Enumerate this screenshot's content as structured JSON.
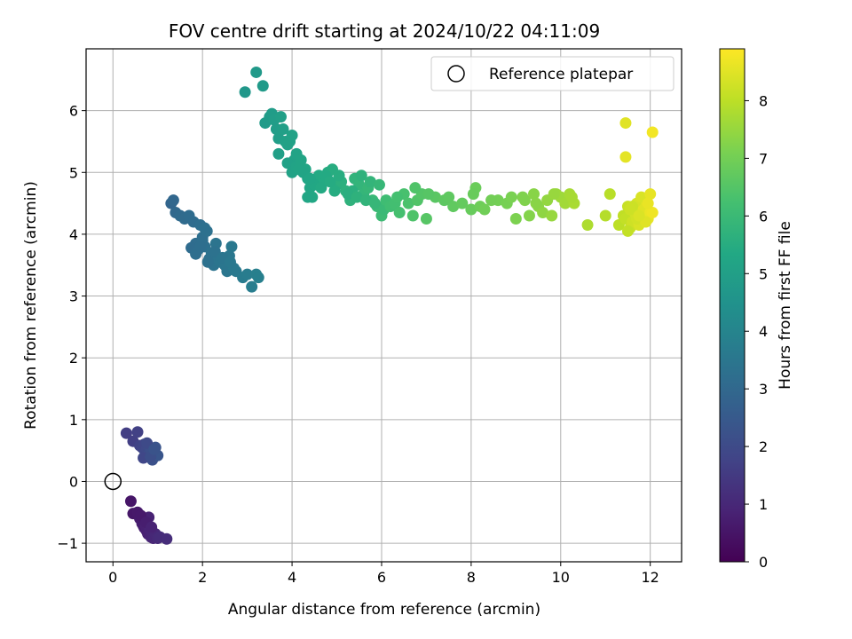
{
  "chart_data": {
    "type": "scatter",
    "title": "FOV centre drift starting at 2024/10/22 04:11:09",
    "xlabel": "Angular distance from reference (arcmin)",
    "ylabel": "Rotation from reference (arcmin)",
    "xlim": [
      -0.6,
      12.7
    ],
    "ylim": [
      -1.3,
      7.0
    ],
    "xticks": [
      0,
      2,
      4,
      6,
      8,
      10,
      12
    ],
    "yticks": [
      -1,
      0,
      1,
      2,
      3,
      4,
      5,
      6
    ],
    "xtick_labels": [
      "0",
      "2",
      "4",
      "6",
      "8",
      "10",
      "12"
    ],
    "ytick_labels": [
      "−1",
      "0",
      "1",
      "2",
      "3",
      "4",
      "5",
      "6"
    ],
    "grid": true,
    "legend": {
      "position": "top-right",
      "label": "Reference platepar"
    },
    "reference_point": {
      "x": 0,
      "y": 0
    },
    "colorbar": {
      "label": "Hours from first FF file",
      "range": [
        0,
        8.9
      ],
      "ticks": [
        0,
        1,
        2,
        3,
        4,
        5,
        6,
        7,
        8
      ],
      "tick_labels": [
        "0",
        "1",
        "2",
        "3",
        "4",
        "5",
        "6",
        "7",
        "8"
      ],
      "colormap": "viridis"
    },
    "series": [
      {
        "x": [
          0.4,
          0.45,
          0.55,
          0.6,
          0.65,
          0.68,
          0.7,
          0.72,
          0.75,
          0.78,
          0.8,
          0.82,
          0.85,
          0.88,
          0.9,
          0.92,
          0.95,
          1.0,
          1.05,
          1.2,
          0.62,
          0.74,
          0.86
        ],
        "y": [
          -0.32,
          -0.52,
          -0.5,
          -0.6,
          -0.68,
          -0.72,
          -0.75,
          -0.7,
          -0.8,
          -0.85,
          -0.58,
          -0.78,
          -0.9,
          -0.82,
          -0.92,
          -0.88,
          -0.85,
          -0.92,
          -0.9,
          -0.93,
          -0.55,
          -0.66,
          -0.74
        ],
        "h": [
          0.5,
          0.55,
          0.6,
          0.65,
          0.7,
          0.72,
          0.75,
          0.78,
          0.8,
          0.82,
          0.85,
          0.88,
          0.9,
          0.92,
          0.95,
          0.97,
          1.0,
          1.05,
          1.1,
          1.15,
          0.62,
          0.74,
          0.86
        ]
      },
      {
        "x": [
          0.3,
          0.45,
          0.55,
          0.6,
          0.65,
          0.7,
          0.72,
          0.75,
          0.78,
          0.8,
          0.82,
          0.85,
          0.88,
          0.9,
          0.95,
          1.0,
          0.68,
          0.76,
          0.84,
          0.92
        ],
        "y": [
          0.78,
          0.65,
          0.8,
          0.58,
          0.55,
          0.6,
          0.48,
          0.52,
          0.4,
          0.45,
          0.55,
          0.5,
          0.35,
          0.45,
          0.55,
          0.42,
          0.38,
          0.62,
          0.4,
          0.52
        ],
        "h": [
          1.6,
          1.65,
          1.7,
          1.75,
          1.8,
          1.85,
          1.9,
          1.95,
          2.0,
          2.05,
          2.1,
          2.15,
          2.2,
          2.25,
          2.3,
          2.35,
          1.88,
          1.98,
          2.12,
          2.28
        ]
      },
      {
        "x": [
          1.3,
          1.35,
          1.4,
          1.5,
          1.6,
          1.7,
          1.8,
          1.85,
          1.9,
          1.95,
          2.0,
          2.05,
          2.1,
          2.15,
          2.2,
          2.25,
          2.3,
          2.35,
          2.4,
          2.5,
          2.55,
          2.6,
          2.65,
          2.7,
          2.75,
          2.9,
          3.0,
          3.1,
          3.2,
          3.25,
          1.75,
          1.85,
          2.0,
          2.12,
          2.28,
          2.45,
          2.62,
          1.95,
          2.05
        ],
        "y": [
          4.5,
          4.55,
          4.35,
          4.3,
          4.25,
          4.3,
          4.2,
          3.85,
          3.75,
          4.15,
          3.95,
          3.8,
          4.05,
          3.6,
          3.7,
          3.5,
          3.85,
          3.6,
          3.55,
          3.5,
          3.4,
          3.65,
          3.8,
          3.45,
          3.4,
          3.3,
          3.35,
          3.15,
          3.35,
          3.3,
          3.78,
          3.68,
          3.9,
          3.55,
          3.72,
          3.62,
          3.55,
          3.8,
          4.1
        ],
        "h": [
          2.9,
          2.95,
          3.0,
          3.05,
          3.1,
          3.12,
          3.15,
          3.18,
          3.2,
          3.22,
          3.25,
          3.28,
          3.3,
          3.32,
          3.35,
          3.38,
          3.4,
          3.42,
          3.45,
          3.48,
          3.5,
          3.52,
          3.55,
          3.58,
          3.6,
          3.65,
          3.7,
          3.75,
          3.8,
          3.82,
          3.15,
          3.2,
          3.25,
          3.3,
          3.35,
          3.45,
          3.55,
          3.22,
          3.28
        ]
      },
      {
        "x": [
          2.95,
          3.2,
          3.35,
          3.4,
          3.5,
          3.55,
          3.6,
          3.65,
          3.7,
          3.75,
          3.8,
          3.85,
          3.9,
          3.95,
          4.0,
          4.05,
          4.1,
          3.7,
          3.9,
          4.0,
          4.1,
          4.2,
          4.3,
          4.35,
          4.4,
          4.45,
          4.5,
          4.55,
          4.6,
          4.7,
          4.8,
          4.9,
          5.0,
          5.1,
          5.2,
          5.3,
          5.4,
          5.5,
          5.6,
          5.7,
          5.8,
          5.9,
          6.0,
          4.25,
          4.5,
          4.75,
          5.05,
          5.35,
          5.55,
          5.75,
          5.95,
          4.15,
          4.4,
          4.65,
          4.95,
          5.25,
          5.45,
          5.65,
          5.85,
          6.05,
          4.35,
          4.85
        ],
        "y": [
          6.3,
          6.62,
          6.4,
          5.8,
          5.9,
          5.95,
          5.85,
          5.7,
          5.55,
          5.9,
          5.7,
          5.5,
          5.45,
          5.5,
          5.6,
          5.2,
          5.3,
          5.3,
          5.15,
          5.0,
          5.1,
          5.2,
          5.05,
          4.9,
          4.75,
          4.6,
          4.8,
          4.9,
          4.95,
          4.85,
          5.0,
          5.05,
          4.8,
          4.85,
          4.7,
          4.55,
          4.9,
          4.8,
          4.65,
          4.75,
          4.55,
          4.45,
          4.3,
          5.0,
          4.8,
          4.95,
          4.95,
          4.7,
          4.95,
          4.85,
          4.8,
          5.05,
          4.9,
          4.75,
          4.7,
          4.65,
          4.6,
          4.55,
          4.5,
          4.4,
          4.6,
          4.85
        ],
        "h": [
          4.7,
          4.75,
          4.8,
          4.82,
          4.85,
          4.88,
          4.9,
          4.92,
          4.95,
          4.98,
          5.0,
          5.02,
          5.05,
          5.08,
          5.1,
          5.12,
          5.15,
          5.0,
          5.05,
          5.1,
          5.15,
          5.2,
          5.22,
          5.25,
          5.28,
          5.3,
          5.32,
          5.35,
          5.38,
          5.4,
          5.45,
          5.5,
          5.55,
          5.6,
          5.65,
          5.7,
          5.75,
          5.8,
          5.85,
          5.9,
          5.95,
          6.0,
          6.05,
          5.2,
          5.3,
          5.4,
          5.5,
          5.6,
          5.7,
          5.8,
          5.9,
          5.18,
          5.28,
          5.38,
          5.48,
          5.58,
          5.68,
          5.78,
          5.88,
          5.98,
          5.25,
          5.45
        ]
      },
      {
        "x": [
          6.1,
          6.2,
          6.3,
          6.4,
          6.5,
          6.6,
          6.7,
          6.8,
          6.9,
          7.0,
          7.2,
          7.4,
          7.6,
          7.8,
          8.0,
          8.1,
          8.2,
          8.3,
          8.6,
          8.8,
          8.9,
          9.0,
          9.2,
          9.3,
          9.4,
          9.5,
          9.6,
          9.7,
          9.8,
          9.9,
          10.0,
          10.1,
          10.2,
          10.3,
          10.6,
          11.0,
          11.1,
          6.35,
          6.75,
          7.05,
          7.5,
          8.05,
          8.45,
          9.15,
          9.45,
          9.85,
          10.25
        ],
        "y": [
          4.55,
          4.45,
          4.5,
          4.35,
          4.65,
          4.5,
          4.3,
          4.55,
          4.65,
          4.25,
          4.6,
          4.55,
          4.45,
          4.5,
          4.4,
          4.75,
          4.45,
          4.4,
          4.55,
          4.5,
          4.6,
          4.25,
          4.55,
          4.3,
          4.65,
          4.45,
          4.35,
          4.55,
          4.3,
          4.65,
          4.6,
          4.5,
          4.65,
          4.5,
          4.15,
          4.3,
          4.65,
          4.6,
          4.75,
          4.65,
          4.6,
          4.65,
          4.55,
          4.6,
          4.5,
          4.65,
          4.6
        ],
        "h": [
          6.1,
          6.15,
          6.2,
          6.25,
          6.3,
          6.35,
          6.4,
          6.45,
          6.5,
          6.55,
          6.6,
          6.65,
          6.7,
          6.75,
          6.8,
          6.85,
          6.9,
          6.95,
          7.0,
          7.05,
          7.1,
          7.15,
          7.2,
          7.25,
          7.3,
          7.35,
          7.4,
          7.45,
          7.5,
          7.55,
          7.6,
          7.65,
          7.7,
          7.75,
          7.8,
          7.9,
          7.95,
          6.22,
          6.42,
          6.55,
          6.68,
          6.82,
          6.98,
          7.18,
          7.32,
          7.52,
          7.72
        ]
      },
      {
        "x": [
          11.3,
          11.4,
          11.45,
          11.5,
          11.55,
          11.6,
          11.65,
          11.7,
          11.75,
          11.8,
          11.85,
          11.9,
          11.95,
          12.0,
          12.05,
          11.45,
          11.45,
          12.05,
          11.5,
          11.6,
          11.7,
          11.8,
          11.9,
          12.0,
          11.55,
          11.75,
          11.95
        ],
        "y": [
          4.15,
          4.3,
          4.25,
          4.45,
          4.1,
          4.2,
          4.35,
          4.5,
          4.15,
          4.3,
          4.4,
          4.55,
          4.25,
          4.35,
          4.35,
          5.8,
          5.25,
          5.65,
          4.05,
          4.45,
          4.25,
          4.6,
          4.2,
          4.65,
          4.4,
          4.3,
          4.5
        ],
        "h": [
          8.0,
          8.05,
          8.1,
          8.15,
          8.2,
          8.25,
          8.3,
          8.35,
          8.4,
          8.45,
          8.5,
          8.55,
          8.6,
          8.65,
          8.7,
          8.5,
          8.55,
          8.75,
          8.1,
          8.2,
          8.3,
          8.4,
          8.5,
          8.6,
          8.22,
          8.42,
          8.62
        ]
      }
    ]
  }
}
